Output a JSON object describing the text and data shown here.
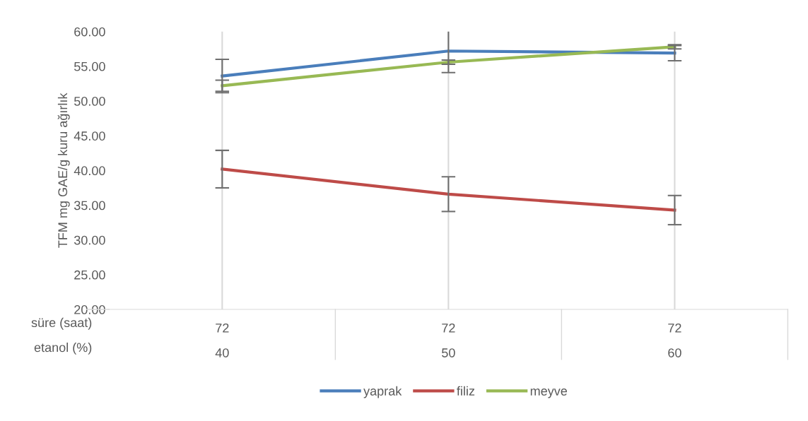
{
  "chart_data": {
    "type": "line",
    "ylabel": "TFM mg GAE/g kuru ağırlık",
    "xlabel": "süre (saat)\netanol (%)",
    "categories": [
      "72\n40",
      "72\n50",
      "72\n60"
    ],
    "series": [
      {
        "name": "yaprak",
        "color": "#4a7ebb",
        "values": [
          53.6,
          57.2,
          56.9
        ],
        "errors": [
          2.4,
          3.1,
          1.1
        ]
      },
      {
        "name": "filiz",
        "color": "#be4b48",
        "values": [
          40.2,
          36.6,
          34.3
        ],
        "errors": [
          2.7,
          2.5,
          2.1
        ]
      },
      {
        "name": "meyve",
        "color": "#98b954",
        "values": [
          52.2,
          55.6,
          57.8
        ],
        "errors": [
          0.8,
          0.3,
          0.3
        ]
      }
    ],
    "ylim": [
      20,
      60
    ],
    "yticks": [
      {
        "value": 20,
        "label": "20.00"
      },
      {
        "value": 25,
        "label": "25.00"
      },
      {
        "value": 30,
        "label": "30.00"
      },
      {
        "value": 35,
        "label": "35.00"
      },
      {
        "value": 40,
        "label": "40.00"
      },
      {
        "value": 45,
        "label": "45.00"
      },
      {
        "value": 50,
        "label": "50.00"
      },
      {
        "value": 55,
        "label": "55.00"
      },
      {
        "value": 60,
        "label": "60.00"
      }
    ],
    "grid": "x",
    "legend": "bottom",
    "marker": "none",
    "line_style": "solid"
  }
}
